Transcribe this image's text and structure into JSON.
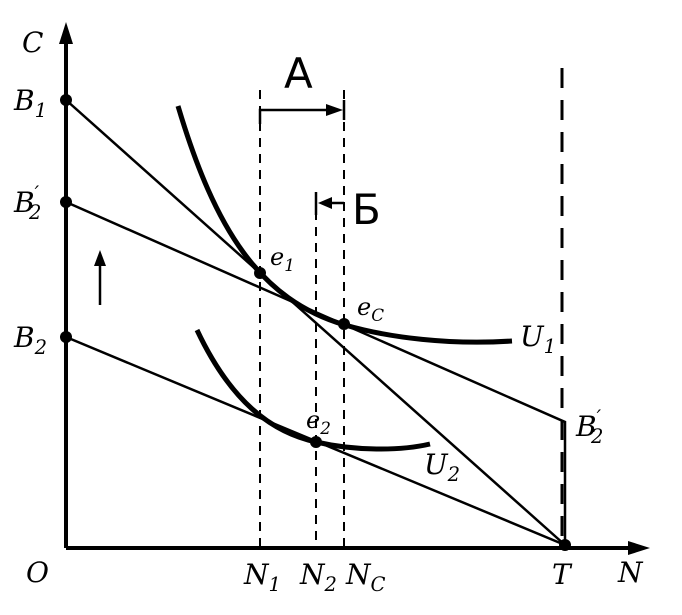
{
  "axes": {
    "y_label": "C",
    "x_label": "N",
    "origin_label": "O"
  },
  "y_points": {
    "b1": "B",
    "b1_sub": "1",
    "b2p": "B",
    "b2p_sub": "2",
    "b2p_prime": "′",
    "b2": "B",
    "b2_sub": "2"
  },
  "x_points": {
    "n1": "N",
    "n1_sub": "1",
    "n2": "N",
    "n2_sub": "2",
    "nc": "N",
    "nc_sub": "C",
    "t": "T"
  },
  "points": {
    "e1": "e",
    "e1_sub": "1",
    "e2": "e",
    "e2_sub": "2",
    "ec": "e",
    "ec_sub": "C"
  },
  "curves": {
    "u1": "U",
    "u1_sub": "1",
    "u2": "U",
    "u2_sub": "2"
  },
  "right_label": {
    "b2p": "B",
    "b2p_sub": "2",
    "b2p_prime": "′"
  },
  "arrows": {
    "a_label": "A",
    "b_label": "Б",
    "up_arrow": "up-arrow"
  },
  "colors": {
    "ink": "#000000",
    "background": "#ffffff"
  }
}
